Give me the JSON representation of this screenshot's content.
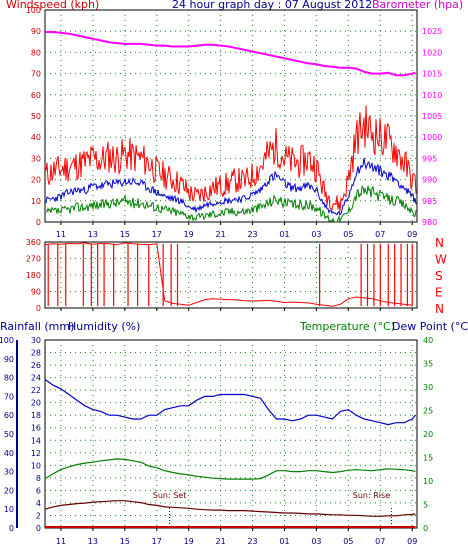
{
  "header": {
    "windspeed_label": "Windspeed (kph)",
    "title": "24 hour graph day : 07 August 2012",
    "barometer_label": "Barometer (hpa)"
  },
  "lower_header": {
    "rainfall_label": "Rainfall (mm)",
    "humidity_label": "Humidity (%)",
    "temperature_label": "Temperature (°C)",
    "dewpoint_label": "Dew Point (°C)"
  },
  "colors": {
    "wind_gust": "#ff0000",
    "wind_avg": "#0000cc",
    "wind_low": "#008000",
    "barometer": "#ff00ff",
    "direction": "#ff0000",
    "humidity": "#0000cc",
    "temperature": "#008000",
    "dewpoint": "#660000",
    "rain": "#cc0000",
    "axis_left": "#cc0000",
    "axis_right": "#008080"
  },
  "chart_data": [
    {
      "type": "line",
      "name": "wind-barometer",
      "x_ticks": [
        "11",
        "13",
        "15",
        "17",
        "19",
        "21",
        "23",
        "01",
        "03",
        "05",
        "07",
        "09"
      ],
      "y_left": {
        "label": "Windspeed (kph)",
        "range": [
          0,
          100
        ],
        "ticks": [
          0,
          10,
          20,
          30,
          40,
          50,
          60,
          70,
          80,
          90,
          100
        ]
      },
      "y_right": {
        "label": "Barometer (hpa)",
        "range": [
          980,
          1030
        ],
        "ticks": [
          980,
          985,
          990,
          995,
          1000,
          1005,
          1010,
          1015,
          1020,
          1025
        ]
      },
      "grid": true,
      "x": [
        10.0,
        10.5,
        11.0,
        11.5,
        12.0,
        12.5,
        13.0,
        13.5,
        14.0,
        14.5,
        15.0,
        15.5,
        16.0,
        16.5,
        17.0,
        17.5,
        18.0,
        18.5,
        19.0,
        19.5,
        20.0,
        20.5,
        21.0,
        21.5,
        22.0,
        22.5,
        23.0,
        23.5,
        24.0,
        24.5,
        25.0,
        25.5,
        26.0,
        26.5,
        27.0,
        27.5,
        28.0,
        28.5,
        29.0,
        29.5,
        30.0,
        30.5,
        31.0,
        31.5,
        32.0,
        32.5,
        33.0,
        33.2
      ],
      "series": [
        {
          "name": "gust",
          "values": [
            22,
            24,
            25,
            26,
            27,
            28,
            30,
            29,
            31,
            30,
            32,
            31,
            30,
            28,
            24,
            22,
            20,
            18,
            14,
            12,
            14,
            16,
            17,
            18,
            20,
            19,
            22,
            26,
            32,
            36,
            30,
            28,
            28,
            30,
            26,
            14,
            10,
            8,
            20,
            40,
            46,
            42,
            40,
            38,
            34,
            28,
            20,
            18
          ]
        },
        {
          "name": "average",
          "values": [
            10,
            11,
            12,
            14,
            15,
            15,
            17,
            17,
            18,
            18,
            19,
            19,
            18,
            16,
            14,
            12,
            11,
            10,
            7,
            6,
            8,
            9,
            10,
            10,
            11,
            11,
            13,
            15,
            20,
            22,
            18,
            16,
            16,
            17,
            15,
            8,
            4,
            4,
            12,
            24,
            28,
            26,
            24,
            22,
            20,
            16,
            12,
            10
          ]
        },
        {
          "name": "low",
          "values": [
            4,
            5,
            5,
            6,
            7,
            7,
            8,
            8,
            9,
            9,
            10,
            9,
            9,
            8,
            7,
            6,
            5,
            4,
            3,
            2,
            3,
            4,
            4,
            5,
            5,
            5,
            6,
            7,
            9,
            11,
            9,
            8,
            8,
            8,
            7,
            3,
            1,
            1,
            5,
            13,
            15,
            14,
            12,
            11,
            10,
            8,
            5,
            4
          ]
        },
        {
          "name": "barometer",
          "values": [
            1024.8,
            1024.8,
            1024.6,
            1024.4,
            1024.0,
            1023.6,
            1023.2,
            1022.8,
            1022.4,
            1022.2,
            1022.0,
            1022.0,
            1022.0,
            1021.8,
            1021.6,
            1021.6,
            1021.4,
            1021.4,
            1021.4,
            1021.6,
            1021.8,
            1021.8,
            1021.6,
            1021.4,
            1021.0,
            1020.6,
            1020.2,
            1019.8,
            1019.4,
            1019.0,
            1018.6,
            1018.2,
            1017.8,
            1017.4,
            1017.2,
            1016.8,
            1016.6,
            1016.4,
            1016.4,
            1016.2,
            1015.4,
            1015.0,
            1015.0,
            1015.2,
            1014.6,
            1014.6,
            1015.0,
            1015.2
          ]
        }
      ]
    },
    {
      "type": "scatter",
      "name": "wind-direction",
      "x_ticks": [
        "11",
        "13",
        "15",
        "17",
        "19",
        "21",
        "23",
        "01",
        "03",
        "05",
        "07",
        "09"
      ],
      "y_left": {
        "range": [
          0,
          360
        ],
        "ticks": [
          0,
          90,
          180,
          270,
          360
        ]
      },
      "y_right_labels": [
        "N",
        "W",
        "S",
        "E",
        "N"
      ],
      "grid": true,
      "x": [
        10.0,
        10.5,
        11.0,
        11.5,
        12.0,
        12.5,
        13.0,
        13.5,
        14.0,
        14.5,
        15.0,
        15.5,
        16.0,
        16.5,
        17.0,
        17.5,
        18.0,
        18.5,
        19.0,
        19.5,
        20.0,
        20.5,
        21.0,
        21.5,
        22.0,
        22.5,
        23.0,
        23.5,
        24.0,
        24.5,
        25.0,
        25.5,
        26.0,
        26.5,
        27.0,
        27.5,
        28.0,
        28.5,
        29.0,
        29.5,
        30.0,
        30.5,
        31.0,
        31.5,
        32.0,
        32.5,
        33.0
      ],
      "values": [
        345,
        350,
        348,
        352,
        350,
        355,
        348,
        352,
        350,
        345,
        355,
        350,
        348,
        345,
        350,
        40,
        25,
        20,
        15,
        30,
        45,
        50,
        48,
        46,
        44,
        40,
        38,
        40,
        42,
        36,
        30,
        32,
        30,
        28,
        20,
        15,
        10,
        20,
        50,
        60,
        55,
        50,
        40,
        30,
        25,
        20,
        15
      ],
      "spikes_x": [
        10.2,
        10.8,
        11.3,
        12.4,
        12.9,
        13.3,
        13.7,
        14.3,
        15.2,
        15.8,
        16.5,
        17.4,
        17.9,
        18.3,
        27.2,
        29.8,
        30.2,
        30.6,
        31.0,
        31.5,
        31.9,
        32.3,
        32.7,
        33.0
      ]
    },
    {
      "type": "line",
      "name": "humidity-temperature-dewpoint",
      "x_ticks": [
        "11",
        "13",
        "15",
        "17",
        "19",
        "21",
        "23",
        "01",
        "03",
        "05",
        "07",
        "09"
      ],
      "y_left_rain": {
        "label": "Rainfall (mm)",
        "range": [
          0,
          100
        ],
        "ticks": [
          0,
          10,
          20,
          30,
          40,
          50,
          60,
          70,
          80,
          90,
          100
        ]
      },
      "y_left_humidity": {
        "label": "Humidity (%)",
        "range": [
          0,
          30
        ],
        "ticks": [
          0,
          2,
          4,
          6,
          8,
          10,
          12,
          14,
          16,
          18,
          20,
          22,
          24,
          26,
          28,
          30
        ]
      },
      "y_right": {
        "label": "Temperature (°C)",
        "range": [
          0,
          40
        ],
        "ticks": [
          0,
          5,
          10,
          15,
          20,
          25,
          30,
          35,
          40
        ]
      },
      "grid": true,
      "annotations": [
        {
          "text": "Sun: Set",
          "x": 17.8
        },
        {
          "text": "Sun: Rise",
          "x": 31.7
        }
      ],
      "x": [
        10.0,
        10.5,
        11.0,
        11.5,
        12.0,
        12.5,
        13.0,
        13.5,
        14.0,
        14.5,
        15.0,
        15.5,
        16.0,
        16.5,
        17.0,
        17.5,
        18.0,
        18.5,
        19.0,
        19.5,
        20.0,
        20.5,
        21.0,
        21.5,
        22.0,
        22.5,
        23.0,
        23.5,
        24.0,
        24.5,
        25.0,
        25.5,
        26.0,
        26.5,
        27.0,
        27.5,
        28.0,
        28.5,
        29.0,
        29.5,
        30.0,
        30.5,
        31.0,
        31.5,
        32.0,
        32.5,
        33.0,
        33.2
      ],
      "series": [
        {
          "name": "humidity",
          "values": [
            79,
            76,
            74,
            71,
            68,
            65,
            63,
            62,
            60,
            60,
            59,
            58,
            58,
            60,
            60,
            63,
            64,
            65,
            65,
            68,
            70,
            70,
            71,
            71,
            71,
            71,
            70,
            69,
            63,
            58,
            58,
            57,
            58,
            60,
            60,
            59,
            58,
            62,
            63,
            60,
            58,
            57,
            56,
            55,
            56,
            56,
            58,
            60
          ]
        },
        {
          "name": "temperature",
          "values": [
            10.5,
            11.5,
            12.5,
            13.0,
            13.5,
            13.8,
            14.0,
            14.3,
            14.5,
            14.7,
            14.6,
            14.3,
            14.0,
            13.2,
            12.8,
            12.2,
            11.8,
            11.5,
            11.3,
            11.0,
            10.8,
            10.6,
            10.5,
            10.4,
            10.4,
            10.4,
            10.4,
            10.5,
            11.3,
            12.2,
            12.2,
            12.0,
            12.0,
            12.2,
            12.2,
            12.0,
            11.8,
            12.0,
            12.3,
            12.4,
            12.3,
            12.2,
            12.4,
            12.6,
            12.5,
            12.4,
            12.2,
            12.0
          ]
        },
        {
          "name": "dewpoint",
          "values": [
            4.0,
            4.5,
            4.8,
            5.0,
            5.2,
            5.3,
            5.5,
            5.6,
            5.7,
            5.8,
            5.8,
            5.6,
            5.4,
            5.0,
            4.8,
            4.5,
            4.4,
            4.3,
            4.2,
            4.0,
            3.9,
            3.8,
            3.8,
            3.7,
            3.7,
            3.7,
            3.6,
            3.5,
            3.4,
            3.3,
            3.2,
            3.2,
            3.1,
            3.0,
            3.0,
            2.9,
            2.8,
            2.8,
            2.7,
            2.7,
            2.6,
            2.5,
            2.5,
            2.6,
            2.6,
            2.8,
            2.9,
            3.0
          ]
        },
        {
          "name": "rain",
          "values": [
            0,
            0,
            0,
            0,
            0,
            0,
            0,
            0,
            0,
            0,
            0,
            0,
            0,
            0,
            0,
            0,
            0,
            0,
            0,
            0,
            0,
            0,
            0,
            0,
            0,
            0,
            0,
            0,
            0,
            0,
            0,
            0,
            0,
            0,
            0,
            0,
            0,
            0,
            0,
            0,
            0,
            0,
            0,
            0,
            0,
            0,
            0,
            0
          ]
        }
      ]
    }
  ]
}
